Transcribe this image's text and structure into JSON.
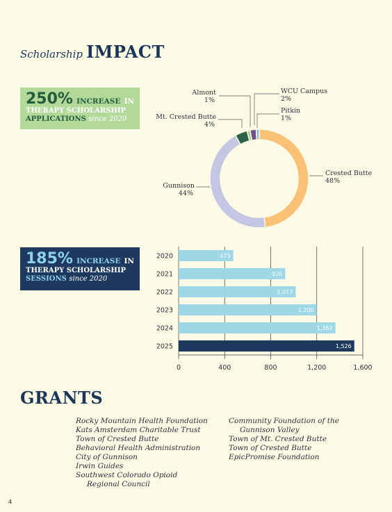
{
  "header": {
    "title_script": "Scholarship",
    "title_main": "IMPACT"
  },
  "stat_applications": {
    "value": "250%",
    "increase": "INCREASE",
    "in": "IN",
    "line2": "THERAPY SCHOLARSHIP",
    "line3": "APPLICATIONS",
    "since": "since 2020",
    "colors": {
      "bg": "#b2d99a",
      "text": "#235c3b"
    }
  },
  "stat_sessions": {
    "value": "185%",
    "increase": "INCREASE",
    "in": "IN",
    "line2": "THERAPY SCHOLARSHIP",
    "line3": "SESSIONS",
    "since": "since 2020",
    "colors": {
      "bg": "#1d3a5e",
      "accent": "#8fd1e8"
    }
  },
  "chart_data": [
    {
      "type": "pie",
      "slices": [
        {
          "label": "Crested Butte",
          "value": 48,
          "display": "48%",
          "color": "#fbc277"
        },
        {
          "label": "Gunnison",
          "value": 44,
          "display": "44%",
          "color": "#c4c6e4"
        },
        {
          "label": "Mt. Crested Butte",
          "value": 4,
          "display": "4%",
          "color": "#2e6148"
        },
        {
          "label": "Almont",
          "value": 1,
          "display": "1%",
          "color": "#a8cf8a"
        },
        {
          "label": "WCU Campus",
          "value": 2,
          "display": "2%",
          "color": "#6f4f86"
        },
        {
          "label": "Pitkin",
          "value": 1,
          "display": "1%",
          "color": "#7fb6de"
        }
      ]
    },
    {
      "type": "bar",
      "orientation": "horizontal",
      "categories": [
        "2020",
        "2021",
        "2022",
        "2023",
        "2024",
        "2025"
      ],
      "values": [
        475,
        926,
        1017,
        1200,
        1362,
        1526
      ],
      "value_labels": [
        "475",
        "926",
        "1,017",
        "1,200",
        "1,362",
        "1,526"
      ],
      "xlim": [
        0,
        1600
      ],
      "x_ticks": [
        0,
        400,
        800,
        1200,
        1600
      ],
      "x_tick_labels": [
        "0",
        "400",
        "800",
        "1,200",
        "1,600"
      ],
      "grid": true,
      "colors": {
        "bar": "#9ed7e6",
        "highlight": "#1d3a5e",
        "highlight_category": "2025"
      }
    }
  ],
  "grants": {
    "title": "GRANTS",
    "col1": [
      "Rocky Mountain Health Foundation",
      "Kats Amsterdam Charitable Trust",
      "Town of Crested Butte",
      "Behavioral Health Administration",
      "City of Gunnison",
      "Irwin Guides",
      "Southwest Colorado Opioid",
      "Regional Council"
    ],
    "col2": [
      "Community Foundation of the",
      "Gunnison Valley",
      "Town of Mt. Crested Butte",
      "Town of Crested Butte",
      "EpicPromise Foundation"
    ]
  },
  "footer": {
    "page_number": "4"
  }
}
